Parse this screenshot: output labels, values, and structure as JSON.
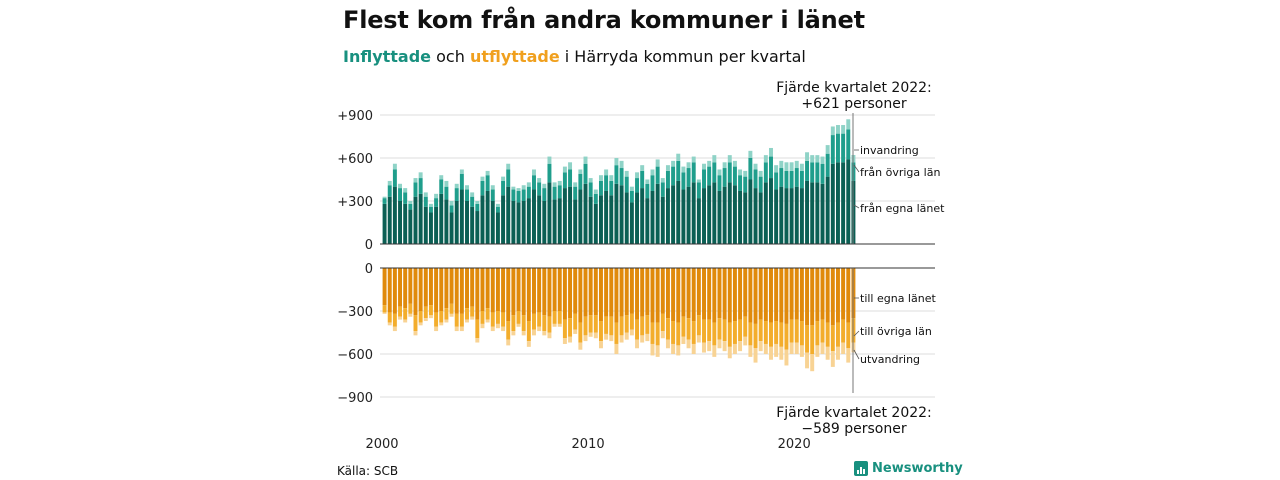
{
  "title": "Flest kom från andra kommuner i länet",
  "subtitle": {
    "in_word": "Inflyttade",
    "mid": " och ",
    "out_word": "utflyttade",
    "rest": " i Härryda kommun per kvartal"
  },
  "annotation_top": "Fjärde kvartalet 2022:\n+621 personer",
  "annotation_top_l1": "Fjärde kvartalet 2022:",
  "annotation_top_l2": "+621 personer",
  "annotation_bot_l1": "Fjärde kvartalet 2022:",
  "annotation_bot_l2": "−589 personer",
  "source": "Källa: SCB",
  "logo": "Newsworthy",
  "colors": {
    "in_dark": "#0b5f54",
    "in_mid": "#1f9e8c",
    "in_light": "#8fd3c7",
    "out_dark": "#e08a0b",
    "out_mid": "#f3ad2c",
    "out_light": "#f8d394",
    "grid": "#dcdcdc"
  },
  "chart_data": {
    "type": "bar",
    "stacked": true,
    "quarters_start": "2000 Q1",
    "quarters_end": "2022 Q4",
    "x_tick_labels": [
      "2000",
      "2010",
      "2020"
    ],
    "top_panel": {
      "y_ticks": [
        "+900",
        "+600",
        "+300",
        "0"
      ],
      "ylim": [
        0,
        900
      ],
      "series_labels": [
        "invandring",
        "från övriga län",
        "från egna länet"
      ]
    },
    "bottom_panel": {
      "y_ticks": [
        "0",
        "−300",
        "−600",
        "−900"
      ],
      "ylim": [
        -900,
        0
      ],
      "series_labels": [
        "till egna länet",
        "till övriga län",
        "utvandring"
      ]
    },
    "in_total": [
      330,
      440,
      560,
      420,
      390,
      300,
      460,
      500,
      360,
      280,
      350,
      480,
      440,
      300,
      420,
      520,
      410,
      360,
      300,
      470,
      510,
      410,
      280,
      470,
      560,
      400,
      390,
      410,
      430,
      520,
      460,
      420,
      610,
      430,
      440,
      540,
      570,
      430,
      520,
      610,
      460,
      380,
      480,
      520,
      480,
      600,
      580,
      510,
      400,
      500,
      550,
      450,
      520,
      590,
      460,
      550,
      580,
      630,
      540,
      570,
      610,
      450,
      560,
      580,
      620,
      520,
      570,
      620,
      580,
      520,
      510,
      650,
      560,
      510,
      620,
      670,
      550,
      580,
      570,
      570,
      580,
      560,
      640,
      620,
      620,
      610,
      690,
      820,
      830,
      830,
      870,
      621
    ],
    "in_egna": [
      280,
      330,
      400,
      300,
      280,
      240,
      330,
      350,
      260,
      220,
      260,
      350,
      310,
      220,
      300,
      380,
      300,
      260,
      230,
      340,
      370,
      300,
      220,
      340,
      400,
      300,
      290,
      300,
      320,
      380,
      340,
      300,
      430,
      310,
      320,
      390,
      400,
      310,
      380,
      420,
      330,
      280,
      340,
      370,
      340,
      420,
      410,
      360,
      290,
      360,
      390,
      320,
      370,
      420,
      330,
      390,
      410,
      440,
      380,
      400,
      430,
      320,
      390,
      410,
      430,
      370,
      400,
      430,
      410,
      370,
      360,
      450,
      390,
      360,
      430,
      460,
      380,
      400,
      390,
      390,
      400,
      390,
      440,
      430,
      430,
      420,
      470,
      560,
      570,
      570,
      590,
      440
    ],
    "in_ovriga": [
      40,
      80,
      120,
      90,
      80,
      40,
      100,
      110,
      70,
      40,
      60,
      100,
      90,
      50,
      90,
      110,
      80,
      70,
      50,
      100,
      110,
      80,
      40,
      100,
      120,
      80,
      80,
      80,
      80,
      100,
      90,
      90,
      130,
      90,
      90,
      110,
      120,
      90,
      110,
      140,
      100,
      70,
      100,
      110,
      100,
      130,
      120,
      110,
      80,
      100,
      120,
      100,
      110,
      120,
      100,
      120,
      130,
      140,
      120,
      130,
      140,
      110,
      130,
      130,
      140,
      110,
      130,
      140,
      130,
      110,
      110,
      150,
      130,
      110,
      140,
      150,
      120,
      130,
      120,
      120,
      130,
      120,
      140,
      140,
      140,
      140,
      160,
      200,
      200,
      200,
      210,
      130
    ],
    "out_total": [
      -320,
      -400,
      -440,
      -360,
      -380,
      -340,
      -470,
      -400,
      -370,
      -350,
      -440,
      -400,
      -380,
      -340,
      -440,
      -440,
      -380,
      -360,
      -520,
      -420,
      -380,
      -440,
      -420,
      -440,
      -540,
      -470,
      -410,
      -470,
      -550,
      -470,
      -440,
      -470,
      -490,
      -410,
      -410,
      -530,
      -520,
      -460,
      -570,
      -510,
      -480,
      -490,
      -560,
      -500,
      -510,
      -600,
      -520,
      -500,
      -470,
      -560,
      -520,
      -510,
      -610,
      -620,
      -490,
      -560,
      -600,
      -610,
      -530,
      -560,
      -600,
      -520,
      -590,
      -580,
      -620,
      -560,
      -580,
      -630,
      -600,
      -580,
      -540,
      -620,
      -660,
      -580,
      -600,
      -640,
      -620,
      -640,
      -680,
      -600,
      -600,
      -620,
      -700,
      -720,
      -620,
      -600,
      -640,
      -690,
      -640,
      -600,
      -660,
      -589
    ],
    "out_egna": [
      -260,
      -310,
      -320,
      -270,
      -280,
      -250,
      -330,
      -300,
      -270,
      -260,
      -310,
      -300,
      -280,
      -250,
      -320,
      -320,
      -280,
      -270,
      -360,
      -300,
      -280,
      -310,
      -300,
      -310,
      -370,
      -330,
      -300,
      -330,
      -370,
      -320,
      -310,
      -330,
      -340,
      -300,
      -300,
      -360,
      -350,
      -320,
      -380,
      -340,
      -330,
      -330,
      -370,
      -340,
      -340,
      -380,
      -340,
      -330,
      -320,
      -360,
      -340,
      -330,
      -380,
      -380,
      -320,
      -350,
      -370,
      -380,
      -340,
      -350,
      -370,
      -330,
      -360,
      -360,
      -380,
      -350,
      -360,
      -380,
      -370,
      -360,
      -340,
      -380,
      -390,
      -360,
      -370,
      -380,
      -370,
      -380,
      -390,
      -360,
      -360,
      -370,
      -400,
      -400,
      -370,
      -360,
      -380,
      -400,
      -380,
      -360,
      -380,
      -350
    ],
    "out_ovriga": [
      -50,
      -70,
      -90,
      -70,
      -80,
      -70,
      -110,
      -80,
      -80,
      -70,
      -100,
      -80,
      -80,
      -70,
      -90,
      -90,
      -80,
      -70,
      -130,
      -90,
      -80,
      -100,
      -90,
      -100,
      -130,
      -110,
      -90,
      -110,
      -140,
      -110,
      -100,
      -110,
      -110,
      -90,
      -90,
      -130,
      -130,
      -110,
      -140,
      -130,
      -120,
      -120,
      -140,
      -120,
      -130,
      -150,
      -130,
      -120,
      -110,
      -140,
      -130,
      -130,
      -150,
      -160,
      -120,
      -150,
      -160,
      -160,
      -140,
      -150,
      -160,
      -140,
      -160,
      -150,
      -160,
      -150,
      -150,
      -170,
      -160,
      -150,
      -140,
      -160,
      -170,
      -150,
      -160,
      -170,
      -160,
      -170,
      -180,
      -160,
      -160,
      -170,
      -190,
      -200,
      -170,
      -160,
      -170,
      -180,
      -170,
      -160,
      -180,
      -170
    ]
  }
}
